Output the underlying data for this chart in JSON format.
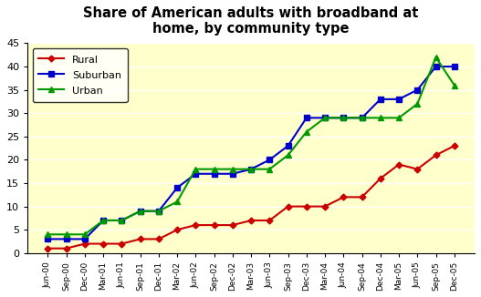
{
  "title": "Share of American adults with broadband at\nhome, by community type",
  "x_labels": [
    "Jun-00",
    "Sep-00",
    "Dec-00",
    "Mar-01",
    "Jun-01",
    "Sep-01",
    "Dec-01",
    "Mar-02",
    "Jun-02",
    "Sep-02",
    "Dec-02",
    "Mar-03",
    "Jun-03",
    "Sep-03",
    "Dec-03",
    "Mar-04",
    "Jun-04",
    "Sep-04",
    "Dec-04",
    "Mar-05",
    "Jun-05",
    "Sep-05",
    "Dec-05"
  ],
  "rural": [
    1,
    1,
    2,
    2,
    2,
    3,
    3,
    5,
    6,
    6,
    6,
    7,
    7,
    10,
    10,
    10,
    12,
    12,
    16,
    19,
    18,
    21,
    23
  ],
  "suburban": [
    3,
    3,
    3,
    7,
    7,
    9,
    9,
    14,
    17,
    17,
    17,
    18,
    20,
    23,
    29,
    29,
    29,
    29,
    33,
    33,
    35,
    40,
    40
  ],
  "urban": [
    4,
    4,
    4,
    7,
    7,
    9,
    9,
    11,
    18,
    18,
    18,
    18,
    18,
    21,
    26,
    29,
    29,
    29,
    29,
    29,
    32,
    42,
    36
  ],
  "rural_color": "#cc0000",
  "suburban_color": "#0000cc",
  "urban_color": "#009900",
  "background_color": "#ffffcc",
  "ylim": [
    0,
    45
  ],
  "yticks": [
    0,
    5,
    10,
    15,
    20,
    25,
    30,
    35,
    40,
    45
  ]
}
